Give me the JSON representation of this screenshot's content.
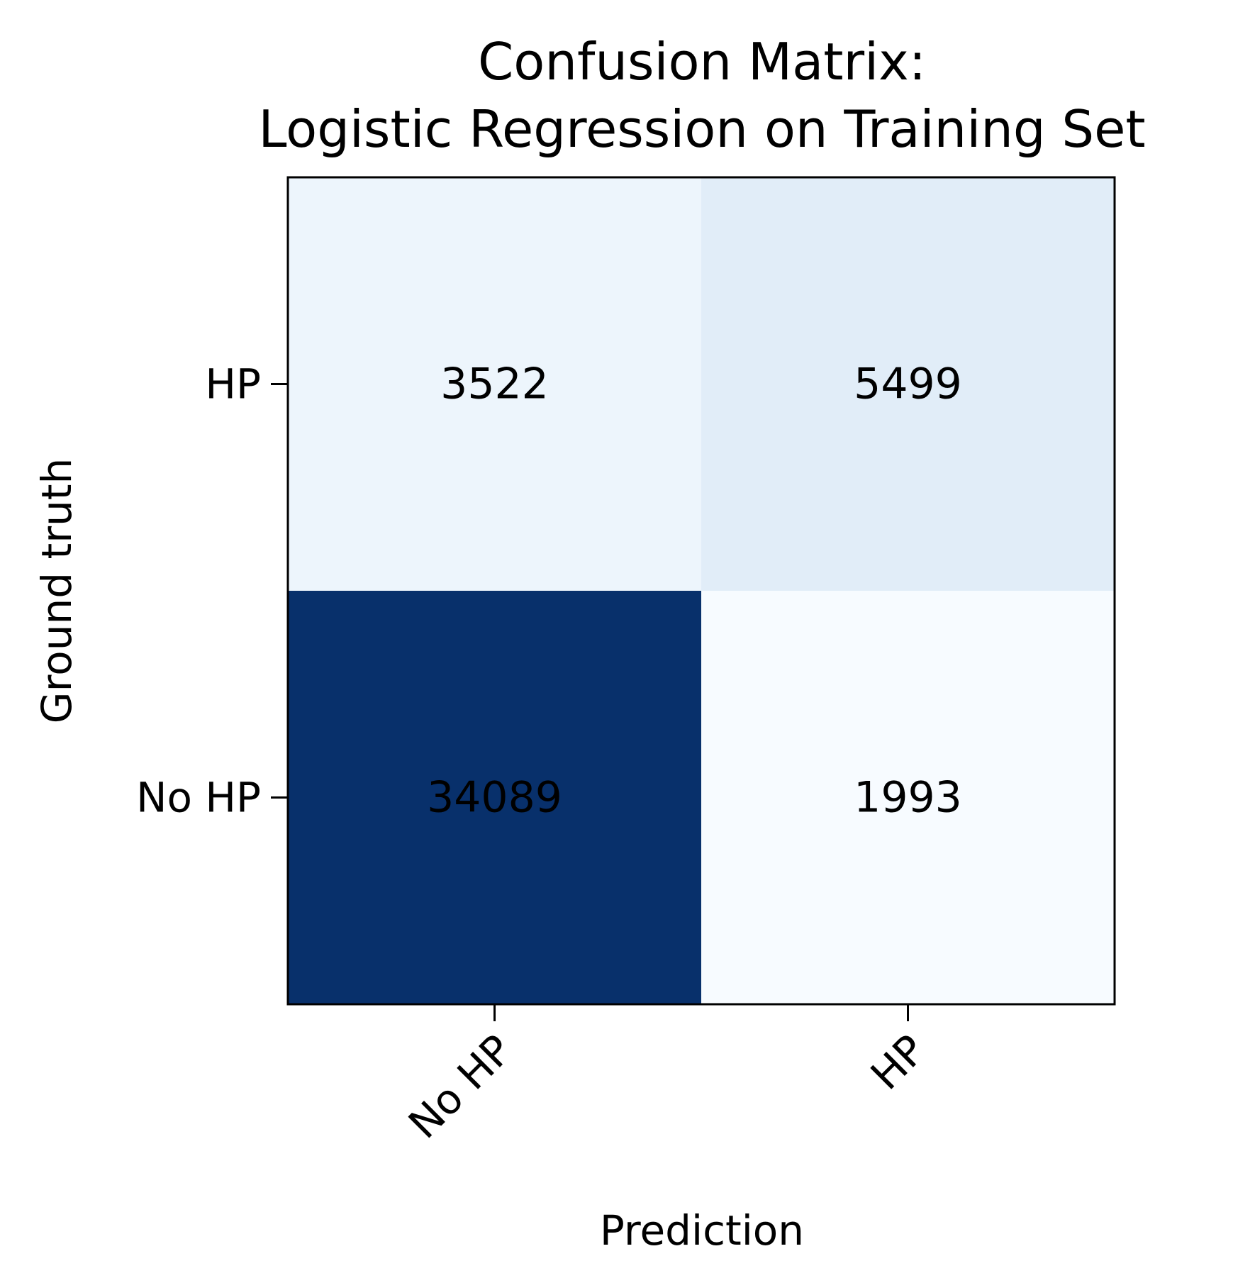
{
  "chart_data": {
    "type": "heatmap",
    "title_lines": [
      "Confusion Matrix:",
      "Logistic Regression on Training Set"
    ],
    "xlabel": "Prediction",
    "ylabel": "Ground truth",
    "x_categories": [
      "No HP",
      "HP"
    ],
    "y_categories": [
      "HP",
      "No HP"
    ],
    "values": [
      [
        3522,
        5499
      ],
      [
        34089,
        1993
      ]
    ],
    "colormap": "Blues",
    "color_low": "#f7fbff",
    "color_high": "#08306b",
    "grid": false
  }
}
